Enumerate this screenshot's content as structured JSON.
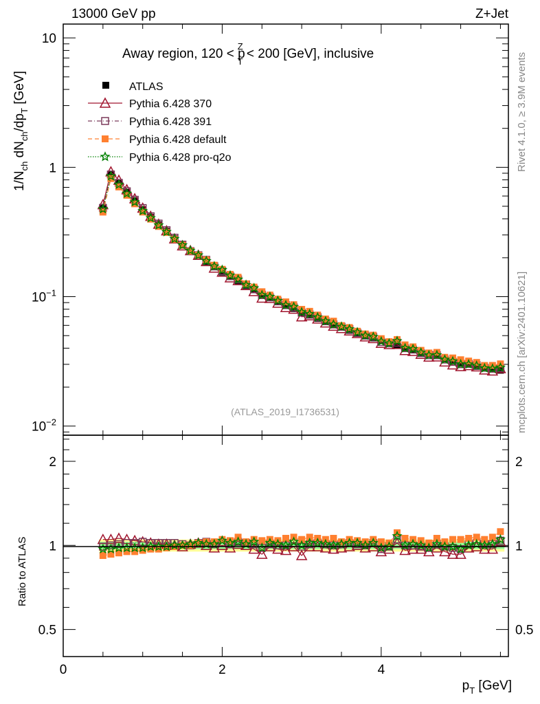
{
  "header": {
    "left": "13000 GeV pp",
    "right": "Z+Jet",
    "title_prefix": "Away region, 120 < p",
    "title_sup": "Z",
    "title_sub": "T",
    "title_suffix": " < 200 [GeV], inclusive",
    "side_top": "Rivet 4.1.0, ≥ 3.9M events",
    "side_bottom": "mcplots.cern.ch [arXiv:2401.10621]",
    "watermark": "(ATLAS_2019_I1736531)"
  },
  "axes": {
    "ylabel_main": "1/N_ch dN_ch/dp_T [GeV]",
    "ylabel_ratio": "Ratio to ATLAS",
    "xlabel": "p_T [GeV]",
    "main_yticks": [
      {
        "v": 10,
        "label": "10"
      },
      {
        "v": 1,
        "label": "1"
      },
      {
        "v": 0.1,
        "label": "10^-1"
      },
      {
        "v": 0.01,
        "label": "10^-2"
      }
    ],
    "ratio_yticks": [
      {
        "v": 2,
        "label": "2"
      },
      {
        "v": 1,
        "label": "1"
      },
      {
        "v": 0.5,
        "label": "0.5"
      }
    ],
    "xticks": [
      {
        "v": 0,
        "label": "0"
      },
      {
        "v": 2,
        "label": "2"
      },
      {
        "v": 4,
        "label": "4"
      }
    ]
  },
  "chart_data": {
    "type": "scatter",
    "title": "Away region, 120 < pT^Z < 200 [GeV], inclusive",
    "xlabel": "p_T [GeV]",
    "ylabel": "1/N_ch dN_ch/dp_T [GeV]",
    "xlim": [
      0,
      5.6
    ],
    "ylim": [
      0.0085,
      12.8
    ],
    "yscale": "log",
    "ratio_ylim": [
      0.4,
      2.48
    ],
    "legend_position": "top-left",
    "x": [
      0.5,
      0.6,
      0.7,
      0.8,
      0.9,
      1.0,
      1.1,
      1.2,
      1.3,
      1.4,
      1.5,
      1.6,
      1.7,
      1.8,
      1.9,
      2.0,
      2.1,
      2.2,
      2.3,
      2.4,
      2.5,
      2.6,
      2.7,
      2.8,
      2.9,
      3.0,
      3.1,
      3.2,
      3.3,
      3.4,
      3.5,
      3.6,
      3.7,
      3.8,
      3.9,
      4.0,
      4.1,
      4.2,
      4.3,
      4.4,
      4.5,
      4.6,
      4.7,
      4.8,
      4.9,
      5.0,
      5.1,
      5.2,
      5.3,
      5.4,
      5.5
    ],
    "data": {
      "name": "ATLAS",
      "color": "#000000",
      "values": [
        0.49,
        0.88,
        0.75,
        0.64,
        0.55,
        0.47,
        0.41,
        0.36,
        0.32,
        0.28,
        0.25,
        0.225,
        0.205,
        0.187,
        0.17,
        0.155,
        0.143,
        0.132,
        0.122,
        0.113,
        0.105,
        0.098,
        0.092,
        0.086,
        0.081,
        0.076,
        0.072,
        0.068,
        0.064,
        0.061,
        0.058,
        0.055,
        0.052,
        0.05,
        0.048,
        0.046,
        0.044,
        0.042,
        0.04,
        0.039,
        0.037,
        0.036,
        0.035,
        0.033,
        0.032,
        0.031,
        0.03,
        0.029,
        0.028,
        0.0275,
        0.027
      ],
      "band_total": 0.05,
      "band_stat": 0.03
    },
    "series": [
      {
        "name": "Pythia 6.428 370",
        "color": "#a0142d",
        "marker": "open-triangle",
        "line": "solid",
        "ratio": [
          1.05,
          1.05,
          1.06,
          1.05,
          1.04,
          1.03,
          1.02,
          1.01,
          1.01,
          1.0,
          0.99,
          1.01,
          1.02,
          1.0,
          0.98,
          1.0,
          0.98,
          1.01,
          1.0,
          0.97,
          0.93,
          0.99,
          0.97,
          0.96,
          0.99,
          0.92,
          0.99,
          0.99,
          0.98,
          0.97,
          0.98,
          0.99,
          1.0,
          0.98,
          0.99,
          0.95,
          0.97,
          1.02,
          0.96,
          0.97,
          0.97,
          0.95,
          0.98,
          0.95,
          0.93,
          0.93,
          0.98,
          0.99,
          0.97,
          0.97,
          1.03
        ]
      },
      {
        "name": "Pythia 6.428 391",
        "color": "#7b3a5a",
        "marker": "open-square",
        "line": "dashdot",
        "ratio": [
          0.99,
          1.0,
          1.01,
          1.02,
          1.02,
          1.03,
          1.02,
          1.02,
          1.02,
          1.02,
          1.01,
          1.0,
          1.02,
          1.03,
          1.01,
          1.02,
          1.01,
          1.03,
          1.02,
          1.01,
          0.98,
          1.01,
          1.0,
          1.0,
          1.02,
          0.99,
          1.01,
          1.02,
          1.01,
          1.0,
          1.01,
          1.02,
          1.01,
          1.0,
          1.02,
          0.97,
          0.99,
          1.05,
          1.0,
          1.0,
          0.99,
          0.98,
          1.01,
          0.99,
          0.98,
          0.97,
          1.01,
          1.02,
          1.01,
          1.01,
          1.04
        ]
      },
      {
        "name": "Pythia 6.428 default",
        "color": "#ff8030",
        "marker": "filled-square",
        "line": "dashed",
        "ratio": [
          0.92,
          0.93,
          0.94,
          0.95,
          0.95,
          0.96,
          0.97,
          0.97,
          0.98,
          0.99,
          1.0,
          1.0,
          1.02,
          1.03,
          1.03,
          1.05,
          1.04,
          1.07,
          1.03,
          1.05,
          1.04,
          1.05,
          1.04,
          1.06,
          1.07,
          1.05,
          1.07,
          1.06,
          1.05,
          1.06,
          1.03,
          1.05,
          1.04,
          1.03,
          1.05,
          1.03,
          1.02,
          1.11,
          1.06,
          1.05,
          1.04,
          1.02,
          1.06,
          1.03,
          1.05,
          1.05,
          1.06,
          1.07,
          1.05,
          1.07,
          1.12
        ]
      },
      {
        "name": "Pythia 6.428 pro-q2o",
        "color": "#008000",
        "marker": "open-star",
        "line": "dotted",
        "ratio": [
          0.97,
          0.97,
          0.98,
          0.98,
          0.98,
          0.98,
          0.99,
          0.99,
          0.99,
          1.0,
          1.0,
          1.01,
          1.02,
          1.01,
          1.01,
          1.04,
          1.02,
          1.03,
          1.01,
          1.03,
          0.98,
          1.02,
          1.01,
          1.0,
          1.03,
          1.0,
          1.02,
          1.02,
          1.01,
          1.0,
          1.01,
          1.02,
          1.02,
          1.0,
          1.02,
          0.98,
          0.99,
          1.08,
          1.0,
          1.01,
          1.0,
          0.98,
          1.01,
          0.99,
          0.99,
          0.97,
          1.0,
          1.01,
          1.0,
          1.01,
          1.05
        ]
      }
    ]
  }
}
